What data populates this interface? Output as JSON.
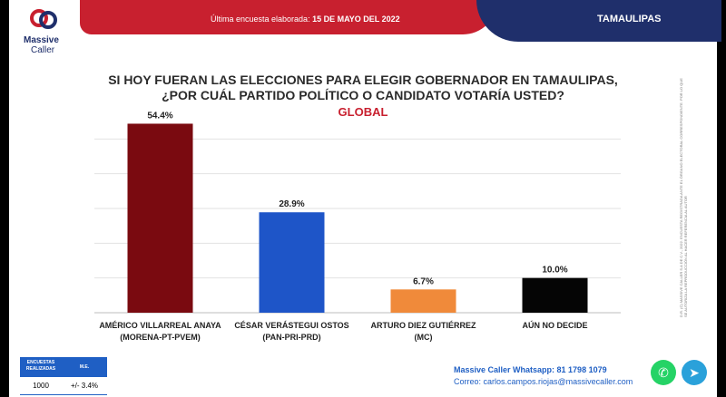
{
  "header": {
    "survey_label": "Última encuesta elaborada:",
    "survey_date": "15 DE MAYO DEL 2022",
    "state": "TAMAULIPAS",
    "logo_line1": "Massive",
    "logo_line2": "Caller"
  },
  "colors": {
    "red": "#c8202f",
    "navy": "#1f2f6b",
    "blue": "#1f5fc4"
  },
  "side_note": "D.R. (C) MASSIVE CALLER S.A DE C.V., 2022. ENCUESTA REGISTRADA ANTE EL ÓRGANO ELECTORAL CORRESPONDIENTE. POR LO QUE SE AUTORIZA LA REPRODUCCIÓN AL HACER REFERENCIA AL AUTOR",
  "chart_data": {
    "type": "bar",
    "title_line1": "SI HOY FUERAN LAS ELECCIONES PARA ELEGIR GOBERNADOR EN TAMAULIPAS,",
    "title_line2": "¿POR CUÁL PARTIDO POLÍTICO O CANDIDATO VOTARÍA USTED?",
    "subtitle": "GLOBAL",
    "categories": [
      {
        "line1": "AMÉRICO VILLARREAL ANAYA",
        "line2": "(MORENA-PT-PVEM)"
      },
      {
        "line1": "CÉSAR VERÁSTEGUI OSTOS",
        "line2": "(PAN-PRI-PRD)"
      },
      {
        "line1": "ARTURO DIEZ GUTIÉRREZ",
        "line2": "(MC)"
      },
      {
        "line1": "AÚN NO DECIDE",
        "line2": ""
      }
    ],
    "values": [
      54.4,
      28.9,
      6.7,
      10.0
    ],
    "value_labels": [
      "54.4%",
      "28.9%",
      "6.7%",
      "10.0%"
    ],
    "bar_colors": [
      "#7a0a10",
      "#1e55c8",
      "#f08a3a",
      "#050505"
    ],
    "ylim": [
      0,
      60
    ],
    "grid": true
  },
  "footer": {
    "col1_header": "ENCUESTAS REALIZADAS",
    "col2_header": "M.E.",
    "col1_value": "1000",
    "col2_value": "+/- 3.4%",
    "whatsapp_text": "Massive Caller Whatsapp: 81 1798 1079",
    "email_text": "Correo: carlos.campos.riojas@massivecaller.com",
    "icons": [
      "whatsapp-icon",
      "telegram-icon"
    ]
  }
}
